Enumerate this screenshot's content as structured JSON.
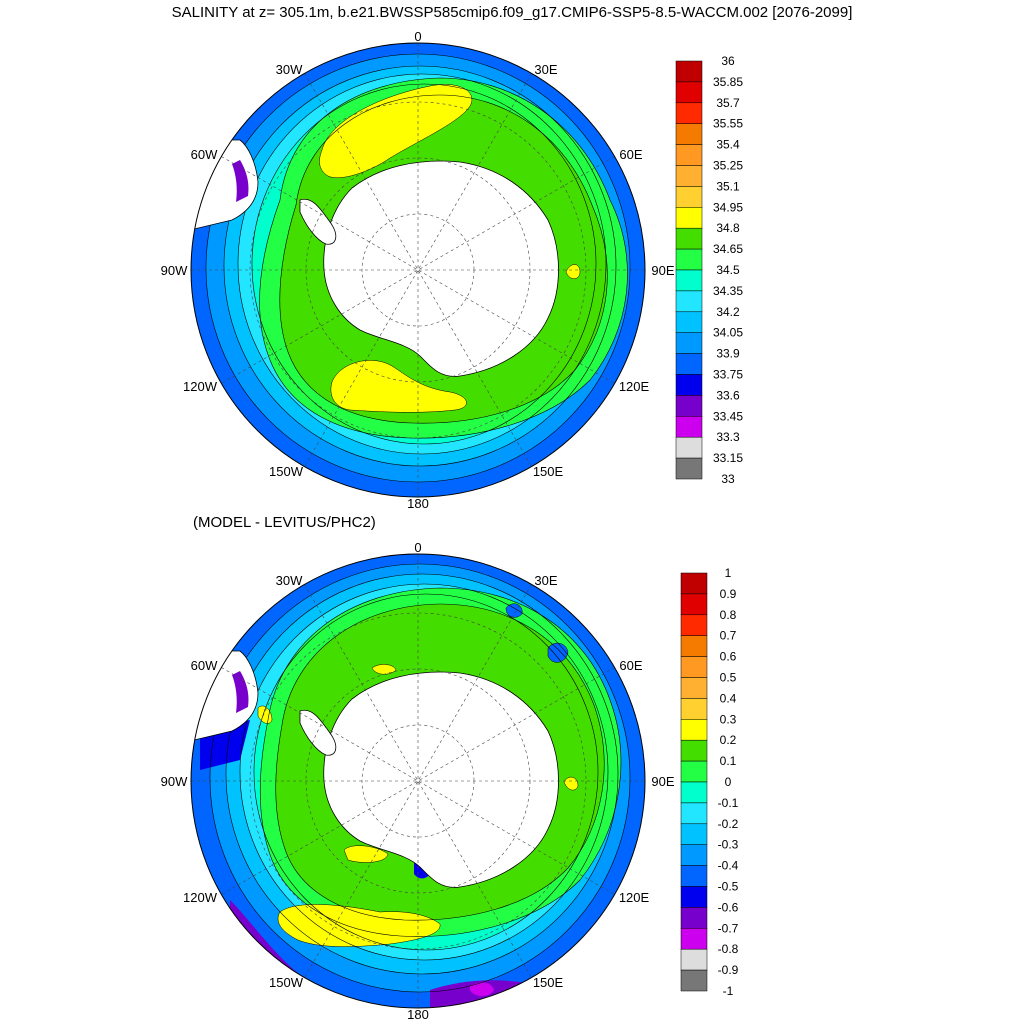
{
  "title": "SALINITY at z= 305.1m, b.e21.BWSSP585cmip6.f09_g17.CMIP6-SSP5-8.5-WACCM.002 [2076-2099]",
  "subtitle": "(MODEL - LEVITUS/PHC2)",
  "lon_labels": [
    "0",
    "30E",
    "60E",
    "90E",
    "120E",
    "150E",
    "180",
    "150W",
    "120W",
    "90W",
    "60W",
    "30W"
  ],
  "top_map": {
    "colorbar_labels": [
      "36",
      "35.85",
      "35.7",
      "35.55",
      "35.4",
      "35.25",
      "35.1",
      "34.95",
      "34.8",
      "34.65",
      "34.5",
      "34.35",
      "34.2",
      "34.05",
      "33.9",
      "33.75",
      "33.6",
      "33.45",
      "33.3",
      "33.15",
      "33"
    ],
    "colors": [
      "#c00000",
      "#e00000",
      "#ff2a00",
      "#f57a00",
      "#ff9922",
      "#ffb030",
      "#ffd030",
      "#ffff00",
      "#44dd00",
      "#22ff44",
      "#00ffcc",
      "#22e6ff",
      "#00c2ff",
      "#0099ff",
      "#0066ff",
      "#0000ee",
      "#7700cc",
      "#cc00ee",
      "#dddddd",
      "#777777"
    ]
  },
  "bottom_map": {
    "colorbar_labels": [
      "1",
      "0.9",
      "0.8",
      "0.7",
      "0.6",
      "0.5",
      "0.4",
      "0.3",
      "0.2",
      "0.1",
      "0",
      "-0.1",
      "-0.2",
      "-0.3",
      "-0.4",
      "-0.5",
      "-0.6",
      "-0.7",
      "-0.8",
      "-0.9",
      "-1"
    ],
    "colors": [
      "#c00000",
      "#e00000",
      "#ff2a00",
      "#f57a00",
      "#ff9922",
      "#ffb030",
      "#ffd030",
      "#ffff00",
      "#44dd00",
      "#22ff44",
      "#00ffcc",
      "#22e6ff",
      "#00c2ff",
      "#0099ff",
      "#0066ff",
      "#0000ee",
      "#7700cc",
      "#cc00ee",
      "#dddddd",
      "#777777"
    ]
  }
}
